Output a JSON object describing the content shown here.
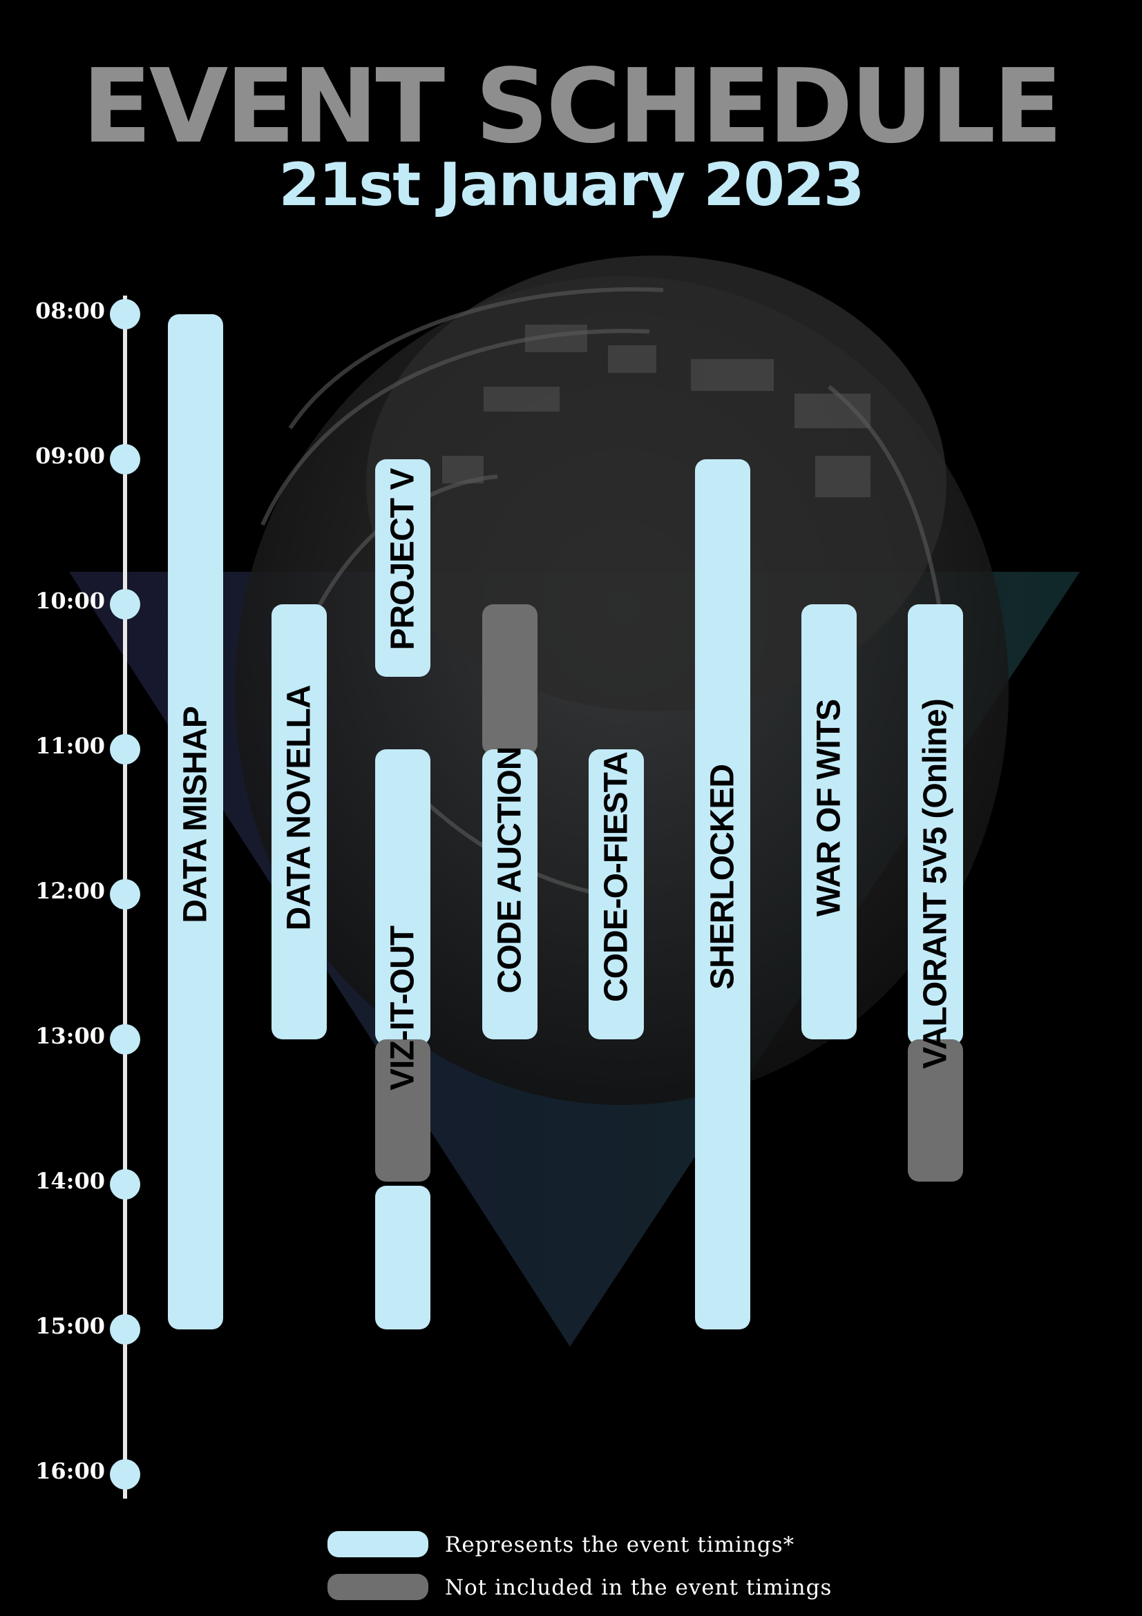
{
  "title": "EVENT SCHEDULE",
  "date": "21st January 2023",
  "colors": {
    "background": "#000000",
    "title": "#8e8e8e",
    "accent": "#c3eaf7",
    "excluded": "#6f6f6f"
  },
  "times": [
    "08:00",
    "09:00",
    "10:00",
    "11:00",
    "12:00",
    "13:00",
    "14:00",
    "15:00",
    "16:00"
  ],
  "events": [
    {
      "name": "DATA MISHAP",
      "start": "08:00",
      "end": "15:00"
    },
    {
      "name": "DATA NOVELLA",
      "start": "10:00",
      "end": "13:00"
    },
    {
      "name": "PROJECT V",
      "start": "09:00",
      "end": "10:30"
    },
    {
      "name": "VIZ-IT-OUT",
      "start": "11:00",
      "end": "15:00",
      "excluded": [
        "13:00",
        "14:00"
      ]
    },
    {
      "name": "CODE AUCTION",
      "start": "11:00",
      "end": "13:00",
      "excluded": [
        "10:00",
        "11:00"
      ]
    },
    {
      "name": "CODE-O-FIESTA",
      "start": "11:00",
      "end": "13:00"
    },
    {
      "name": "SHERLOCKED",
      "start": "09:00",
      "end": "15:00"
    },
    {
      "name": "WAR OF WITS",
      "start": "10:00",
      "end": "13:00"
    },
    {
      "name": "VALORANT 5V5 (Online)",
      "start": "10:00",
      "end": "13:00",
      "excluded": [
        "13:00",
        "14:00"
      ]
    }
  ],
  "legend": {
    "active": "Represents the event timings*",
    "inactive": "Not included in the event timings"
  }
}
